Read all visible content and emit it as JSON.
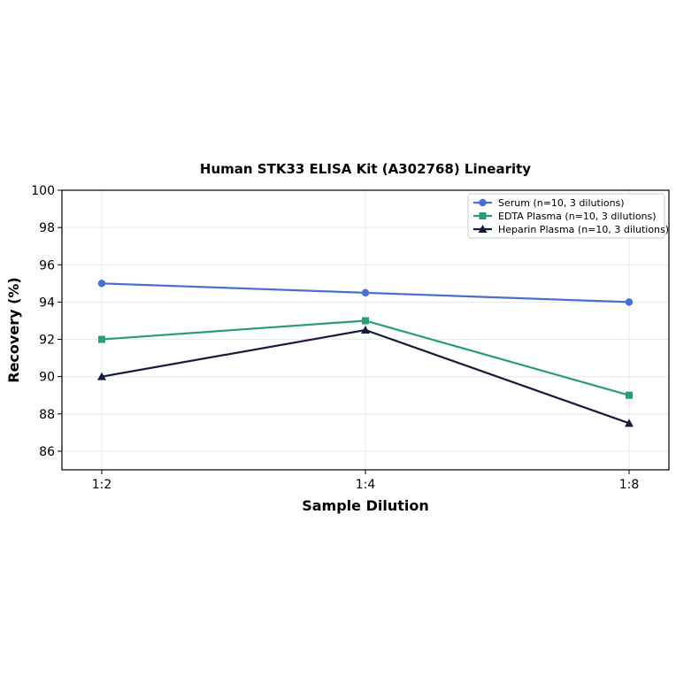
{
  "chart_data": {
    "type": "line",
    "title": "Human STK33 ELISA Kit (A302768) Linearity",
    "xlabel": "Sample Dilution",
    "ylabel": "Recovery (%)",
    "categories": [
      "1:2",
      "1:4",
      "1:8"
    ],
    "ylim": [
      85,
      100
    ],
    "yticks": [
      86,
      88,
      90,
      92,
      94,
      96,
      98,
      100
    ],
    "grid": true,
    "legend_position": "top-right",
    "series": [
      {
        "name": "Serum (n=10, 3 dilutions)",
        "values": [
          95,
          94.5,
          94
        ],
        "color": "#4a6fd1",
        "marker": "circle"
      },
      {
        "name": "EDTA Plasma (n=10, 3 dilutions)",
        "values": [
          92,
          93,
          89
        ],
        "color": "#2a9d74",
        "marker": "square"
      },
      {
        "name": "Heparin Plasma (n=10, 3 dilutions)",
        "values": [
          90,
          92.5,
          87.5
        ],
        "color": "#141d3b",
        "marker": "triangle"
      }
    ]
  }
}
